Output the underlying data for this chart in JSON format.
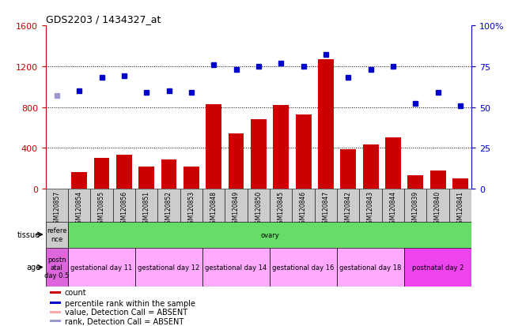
{
  "title": "GDS2203 / 1434327_at",
  "samples": [
    "GSM120857",
    "GSM120854",
    "GSM120855",
    "GSM120856",
    "GSM120851",
    "GSM120852",
    "GSM120853",
    "GSM120848",
    "GSM120849",
    "GSM120850",
    "GSM120845",
    "GSM120846",
    "GSM120847",
    "GSM120842",
    "GSM120843",
    "GSM120844",
    "GSM120839",
    "GSM120840",
    "GSM120841"
  ],
  "bar_values": [
    0,
    160,
    300,
    330,
    220,
    290,
    220,
    830,
    540,
    680,
    820,
    730,
    1270,
    390,
    430,
    500,
    130,
    175,
    100
  ],
  "bar_color": "#cc0000",
  "absent_bar_color": "#ffaaaa",
  "absent_bar_indices": [
    0
  ],
  "dot_percentiles": [
    57,
    60,
    68,
    69,
    59,
    60,
    59,
    76,
    73,
    75,
    77,
    75,
    82,
    68,
    73,
    75,
    52,
    59,
    51
  ],
  "dot_color": "#0000cc",
  "absent_dot_indices": [
    0
  ],
  "absent_dot_color": "#9999cc",
  "ylim_left": [
    0,
    1600
  ],
  "ylim_right": [
    0,
    100
  ],
  "yticks_left": [
    0,
    400,
    800,
    1200,
    1600
  ],
  "yticks_right": [
    0,
    25,
    50,
    75,
    100
  ],
  "grid_yticks": [
    400,
    800,
    1200
  ],
  "tissue_row": [
    {
      "label": "refere\nnce",
      "color": "#cccccc",
      "span": [
        0,
        1
      ]
    },
    {
      "label": "ovary",
      "color": "#66dd66",
      "span": [
        1,
        19
      ]
    }
  ],
  "age_row": [
    {
      "label": "postn\natal\nday 0.5",
      "color": "#dd66dd",
      "span": [
        0,
        1
      ]
    },
    {
      "label": "gestational day 11",
      "color": "#ffaaff",
      "span": [
        1,
        4
      ]
    },
    {
      "label": "gestational day 12",
      "color": "#ffaaff",
      "span": [
        4,
        7
      ]
    },
    {
      "label": "gestational day 14",
      "color": "#ffaaff",
      "span": [
        7,
        10
      ]
    },
    {
      "label": "gestational day 16",
      "color": "#ffaaff",
      "span": [
        10,
        13
      ]
    },
    {
      "label": "gestational day 18",
      "color": "#ffaaff",
      "span": [
        13,
        16
      ]
    },
    {
      "label": "postnatal day 2",
      "color": "#ee44ee",
      "span": [
        16,
        19
      ]
    }
  ],
  "legend_items": [
    {
      "color": "#cc0000",
      "label": "count",
      "marker": "square"
    },
    {
      "color": "#0000cc",
      "label": "percentile rank within the sample",
      "marker": "square"
    },
    {
      "color": "#ffaaaa",
      "label": "value, Detection Call = ABSENT",
      "marker": "square"
    },
    {
      "color": "#9999cc",
      "label": "rank, Detection Call = ABSENT",
      "marker": "square"
    }
  ],
  "background_color": "#ffffff",
  "plot_bg_color": "#ffffff",
  "left_axis_color": "#cc0000",
  "right_axis_color": "#0000cc",
  "sample_box_color": "#cccccc"
}
